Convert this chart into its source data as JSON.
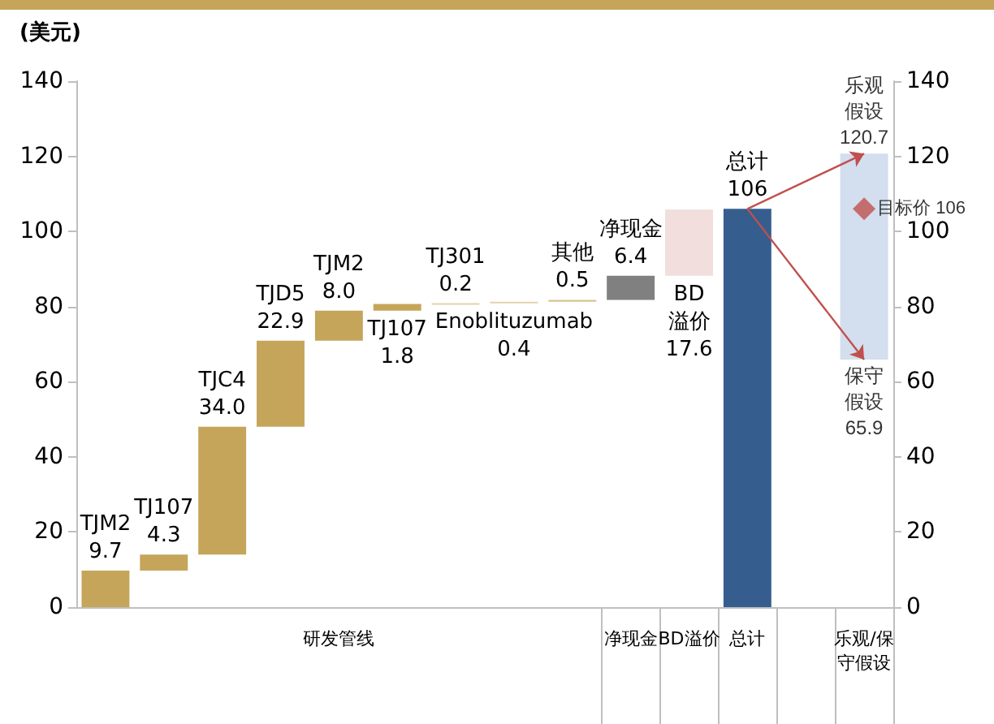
{
  "chart_data": {
    "type": "bar",
    "ylabel": "(美元)",
    "categories": [
      null,
      null,
      null,
      null,
      "研发管线",
      null,
      null,
      null,
      null,
      "净现金",
      "BD溢价",
      "总计",
      null,
      "乐观/保守假设"
    ],
    "series": [
      {
        "base": [
          0,
          9.7,
          14.0,
          48.0,
          70.9,
          78.9,
          80.7,
          80.9,
          81.3,
          81.8,
          88.2,
          0,
          null,
          65.9
        ],
        "values": [
          9.7,
          4.3,
          34.0,
          22.9,
          8.0,
          1.8,
          0.2,
          0.4,
          0.5,
          6.4,
          17.6,
          106,
          null,
          54.8
        ],
        "colors": [
          "#c5a55a",
          "#c5a55a",
          "#c5a55a",
          "#c5a55a",
          "#c5a55a",
          "#c5a55a",
          "#e2d3ac",
          "#e2d3ac",
          "#d9c48f",
          "#808080",
          "#f1dedd",
          "#355e8f",
          null,
          "#d3deee"
        ],
        "value_labels": [
          "TJM2\n9.7",
          "TJ107\n4.3",
          "TJC4\n34.0",
          "TJD5\n22.9",
          "TJM2\n8.0",
          "TJ107\n1.8",
          "TJ301\n0.2",
          "Enoblituzumab\n0.4",
          "其他\n0.5",
          "净现金\n6.4",
          "BD\n溢价\n17.6",
          "总计\n106",
          null,
          null
        ]
      },
      {
        "type": "scatter",
        "x": [
          "乐观/保守假设"
        ],
        "values": [
          106
        ],
        "color": "#c0504d",
        "marker": "diamond",
        "value_labels": [
          "目标价 106"
        ]
      }
    ],
    "annotations": [
      {
        "text": "乐观假设120.7",
        "x": "乐观/保守假设",
        "y": 120.7
      },
      {
        "text": "保守假设65.9",
        "x": "乐观/保守假设",
        "y": 65.9
      }
    ],
    "ylim": [
      0,
      140
    ],
    "yticks": [
      0,
      20,
      40,
      60,
      80,
      100,
      120,
      140
    ],
    "y2lim": [
      0,
      140
    ],
    "y2ticks": [
      0,
      20,
      40,
      60,
      80,
      100,
      120,
      140
    ]
  }
}
